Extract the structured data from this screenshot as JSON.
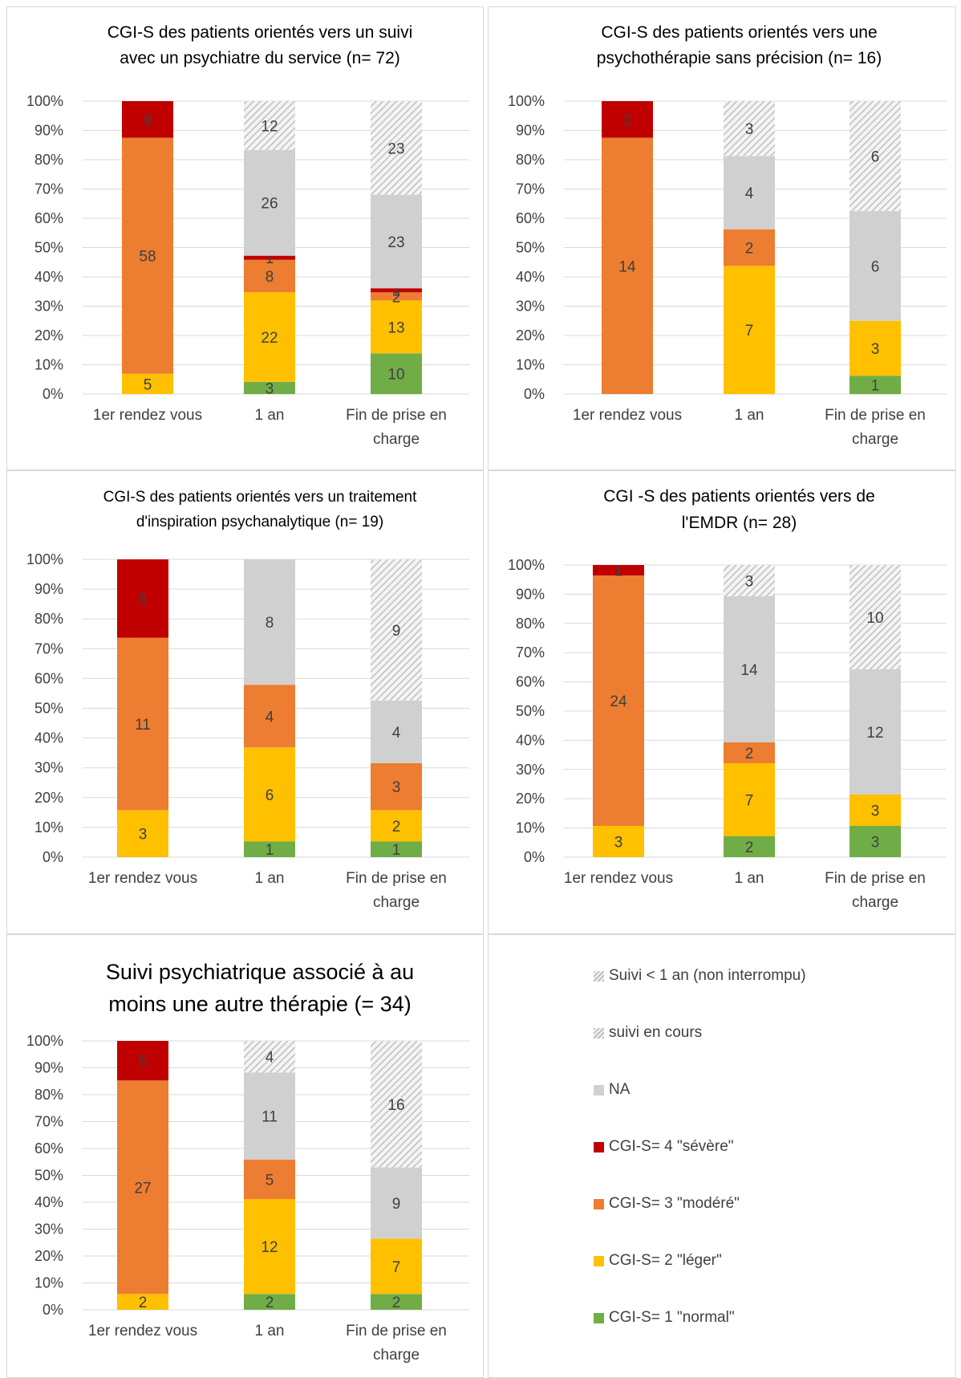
{
  "colors": {
    "normal": "#70ad47",
    "leger": "#ffc000",
    "modere": "#ed7d31",
    "severe": "#c00000",
    "na": "#d0d0d0",
    "hatch": "#bfbfbf"
  },
  "legend": [
    {
      "key": "hatch_lt1",
      "label": "Suivi < 1 an (non interrompu)"
    },
    {
      "key": "hatch_cours",
      "label": "suivi en cours"
    },
    {
      "key": "na",
      "label": "NA"
    },
    {
      "key": "severe",
      "label": "CGI-S= 4 \"sévère\""
    },
    {
      "key": "modere",
      "label": "CGI-S= 3 \"modéré\""
    },
    {
      "key": "leger",
      "label": "CGI-S= 2 \"léger\""
    },
    {
      "key": "normal",
      "label": "CGI-S= 1 \"normal\""
    }
  ],
  "chart_data": [
    {
      "type": "bar",
      "stacked": "percent",
      "title": [
        "CGI-S des patients orientés vers un suivi",
        "avec un psychiatre du service (n= 72)"
      ],
      "categories": [
        [
          "1er rendez vous"
        ],
        [
          "1 an"
        ],
        [
          "Fin de prise en",
          "charge"
        ]
      ],
      "y_ticks": [
        "0%",
        "10%",
        "20%",
        "30%",
        "40%",
        "50%",
        "60%",
        "70%",
        "80%",
        "90%",
        "100%"
      ],
      "series": [
        {
          "key": "normal",
          "values": [
            0,
            3,
            10
          ]
        },
        {
          "key": "leger",
          "values": [
            5,
            22,
            13
          ]
        },
        {
          "key": "modere",
          "values": [
            58,
            8,
            2
          ]
        },
        {
          "key": "severe",
          "values": [
            9,
            1,
            1
          ]
        },
        {
          "key": "na",
          "values": [
            0,
            26,
            23
          ]
        },
        {
          "key": "hatch",
          "values": [
            0,
            12,
            23
          ]
        }
      ]
    },
    {
      "type": "bar",
      "stacked": "percent",
      "title": [
        "CGI-S des patients orientés vers une",
        "psychothérapie sans précision (n= 16)"
      ],
      "categories": [
        [
          "1er rendez vous"
        ],
        [
          "1 an"
        ],
        [
          "Fin de prise en",
          "charge"
        ]
      ],
      "y_ticks": [
        "0%",
        "10%",
        "20%",
        "30%",
        "40%",
        "50%",
        "60%",
        "70%",
        "80%",
        "90%",
        "100%"
      ],
      "series": [
        {
          "key": "normal",
          "values": [
            0,
            0,
            1
          ]
        },
        {
          "key": "leger",
          "values": [
            0,
            7,
            3
          ]
        },
        {
          "key": "modere",
          "values": [
            14,
            2,
            0
          ]
        },
        {
          "key": "severe",
          "values": [
            2,
            0,
            0
          ]
        },
        {
          "key": "na",
          "values": [
            0,
            4,
            6
          ]
        },
        {
          "key": "hatch",
          "values": [
            0,
            3,
            6
          ]
        }
      ]
    },
    {
      "type": "bar",
      "stacked": "percent",
      "title": [
        "CGI-S des patients orientés vers un traitement",
        "d'inspiration psychanalytique (n= 19)"
      ],
      "categories": [
        [
          "1er rendez vous"
        ],
        [
          "1 an"
        ],
        [
          "Fin de prise en",
          "charge"
        ]
      ],
      "y_ticks": [
        "0%",
        "10%",
        "20%",
        "30%",
        "40%",
        "50%",
        "60%",
        "70%",
        "80%",
        "90%",
        "100%"
      ],
      "series": [
        {
          "key": "normal",
          "values": [
            0,
            1,
            1
          ]
        },
        {
          "key": "leger",
          "values": [
            3,
            6,
            2
          ]
        },
        {
          "key": "modere",
          "values": [
            11,
            4,
            3
          ]
        },
        {
          "key": "severe",
          "values": [
            5,
            0,
            0
          ]
        },
        {
          "key": "na",
          "values": [
            0,
            8,
            4
          ]
        },
        {
          "key": "hatch",
          "values": [
            0,
            0,
            9
          ]
        }
      ]
    },
    {
      "type": "bar",
      "stacked": "percent",
      "title": [
        "CGI -S des patients orientés vers de",
        "l'EMDR (n= 28)"
      ],
      "categories": [
        [
          "1er rendez vous"
        ],
        [
          "1 an"
        ],
        [
          "Fin de prise en",
          "charge"
        ]
      ],
      "y_ticks": [
        "0%",
        "10%",
        "20%",
        "30%",
        "40%",
        "50%",
        "60%",
        "70%",
        "80%",
        "90%",
        "100%"
      ],
      "series": [
        {
          "key": "normal",
          "values": [
            0,
            2,
            3
          ]
        },
        {
          "key": "leger",
          "values": [
            3,
            7,
            3
          ]
        },
        {
          "key": "modere",
          "values": [
            24,
            2,
            0
          ]
        },
        {
          "key": "severe",
          "values": [
            1,
            0,
            0
          ]
        },
        {
          "key": "na",
          "values": [
            0,
            14,
            12
          ]
        },
        {
          "key": "hatch",
          "values": [
            0,
            3,
            10
          ]
        }
      ]
    },
    {
      "type": "bar",
      "stacked": "percent",
      "title": [
        "Suivi psychiatrique associé à au",
        "moins une autre thérapie (= 34)"
      ],
      "categories": [
        [
          "1er rendez vous"
        ],
        [
          "1 an"
        ],
        [
          "Fin de prise en",
          "charge"
        ]
      ],
      "y_ticks": [
        "0%",
        "10%",
        "20%",
        "30%",
        "40%",
        "50%",
        "60%",
        "70%",
        "80%",
        "90%",
        "100%"
      ],
      "series": [
        {
          "key": "normal",
          "values": [
            0,
            2,
            2
          ]
        },
        {
          "key": "leger",
          "values": [
            2,
            12,
            7
          ]
        },
        {
          "key": "modere",
          "values": [
            27,
            5,
            0
          ]
        },
        {
          "key": "severe",
          "values": [
            5,
            0,
            0
          ]
        },
        {
          "key": "na",
          "values": [
            0,
            11,
            9
          ]
        },
        {
          "key": "hatch",
          "values": [
            0,
            4,
            16
          ]
        }
      ]
    }
  ]
}
